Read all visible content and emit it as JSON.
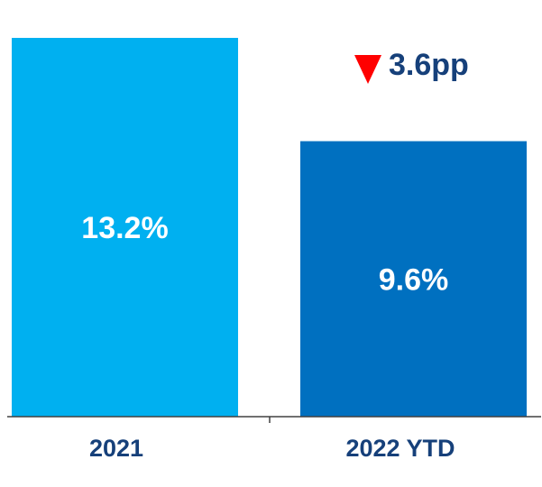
{
  "chart_data": {
    "type": "bar",
    "title": "",
    "xlabel": "",
    "ylabel": "",
    "categories": [
      "2021",
      "2022 YTD"
    ],
    "values": [
      13.2,
      9.6
    ],
    "value_labels": [
      "13.2%",
      "9.6%"
    ],
    "bar_colors": [
      "#00b0f0",
      "#0070c0"
    ],
    "ylim": [
      0,
      13.2
    ],
    "grid": false,
    "legend": "none",
    "annotation": {
      "text": "3.6pp",
      "icon": "down-triangle-icon",
      "icon_color": "#ff0000",
      "text_color": "#16407a"
    },
    "axis_color": "#404040"
  }
}
